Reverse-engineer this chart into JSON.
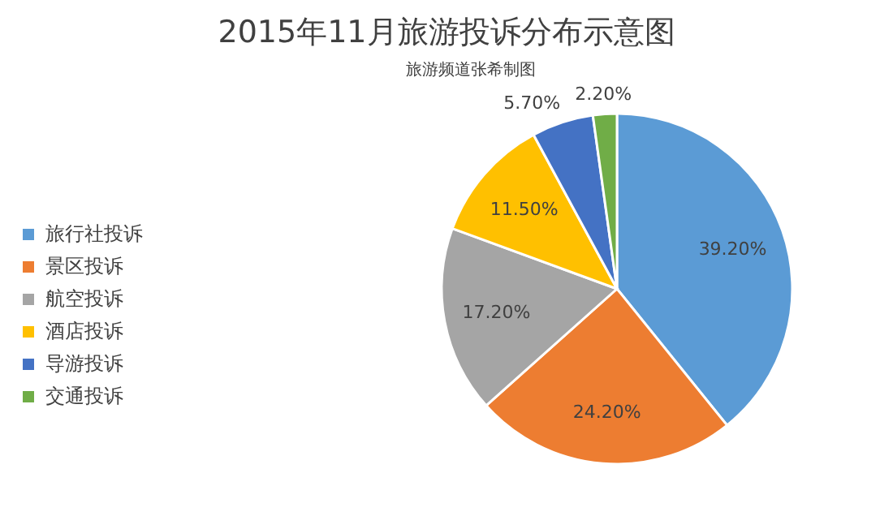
{
  "chart_data": {
    "type": "pie",
    "title": "2015年11月旅游投诉分布示意图",
    "subtitle": "旅游频道张希制图",
    "categories": [
      "旅行社投诉",
      "景区投诉",
      "航空投诉",
      "酒店投诉",
      "导游投诉",
      "交通投诉"
    ],
    "values": [
      39.2,
      24.2,
      17.2,
      11.5,
      5.7,
      2.2
    ],
    "value_labels": [
      "39.20%",
      "24.20%",
      "17.20%",
      "11.50%",
      "5.70%",
      "2.20%"
    ],
    "colors": [
      "#5b9bd5",
      "#ed7d31",
      "#a5a5a5",
      "#ffc000",
      "#4472c4",
      "#70ad47"
    ],
    "legend": "left"
  }
}
